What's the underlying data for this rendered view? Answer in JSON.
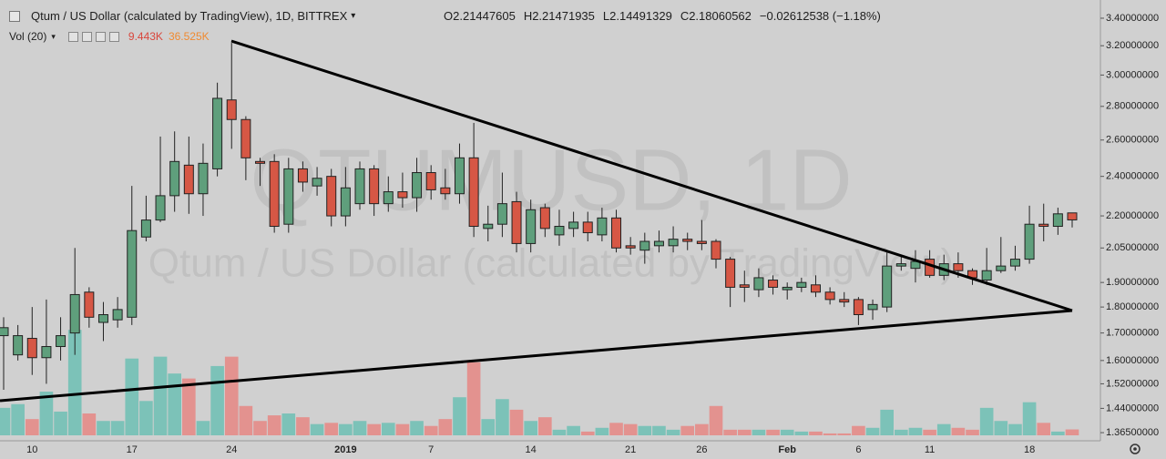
{
  "header": {
    "title": "Qtum / US Dollar (calculated by TradingView), 1D, BITTREX",
    "ohlc": [
      {
        "label": "O",
        "value": "2.21447605"
      },
      {
        "label": "H",
        "value": "2.21471935"
      },
      {
        "label": "L",
        "value": "2.14491329"
      },
      {
        "label": "C",
        "value": "2.18060562"
      }
    ],
    "change": "−0.02612538 (−1.18%)",
    "volume_indicator": "Vol (20)",
    "volume_value": "9.443K",
    "volume_ma": "36.525K"
  },
  "chart_data": {
    "type": "candlestick",
    "watermark": "QTUMUSD, 1D",
    "watermark_subtitle": "Qtum / US Dollar (calculated by TradingView)",
    "categories": [
      null,
      null,
      "10",
      null,
      null,
      null,
      null,
      null,
      null,
      "17",
      null,
      null,
      null,
      null,
      null,
      null,
      "24",
      null,
      null,
      null,
      null,
      null,
      null,
      null,
      "2019",
      null,
      null,
      null,
      null,
      null,
      "7",
      null,
      null,
      null,
      null,
      null,
      null,
      "14",
      null,
      null,
      null,
      null,
      null,
      null,
      "21",
      null,
      null,
      null,
      null,
      "26",
      null,
      null,
      null,
      null,
      null,
      "Feb",
      null,
      null,
      null,
      null,
      "6",
      null,
      null,
      null,
      null,
      "11",
      null,
      null,
      null,
      null,
      null,
      null,
      "18",
      null,
      null,
      null
    ],
    "open": [
      1.69,
      1.62,
      1.68,
      1.61,
      1.65,
      1.7,
      1.86,
      1.74,
      1.75,
      1.76,
      2.1,
      2.18,
      2.3,
      2.46,
      2.31,
      2.44,
      2.84,
      2.72,
      2.48,
      2.48,
      2.16,
      2.44,
      2.35,
      2.4,
      2.2,
      2.26,
      2.44,
      2.26,
      2.32,
      2.29,
      2.42,
      2.34,
      2.31,
      2.5,
      2.14,
      2.16,
      2.27,
      2.07,
      2.24,
      2.11,
      2.14,
      2.17,
      2.11,
      2.19,
      2.06,
      2.04,
      2.06,
      2.06,
      2.09,
      2.08,
      2.08,
      2.0,
      1.89,
      1.87,
      1.91,
      1.87,
      1.88,
      1.89,
      1.86,
      1.83,
      1.83,
      1.79,
      1.8,
      1.97,
      1.96,
      2.0,
      1.93,
      1.98,
      1.95,
      1.91,
      1.95,
      1.97,
      2.0,
      2.16,
      2.15,
      2.21447605
    ],
    "high": [
      1.76,
      1.73,
      1.8,
      1.83,
      1.76,
      2.05,
      1.88,
      1.82,
      1.84,
      2.35,
      2.3,
      2.62,
      2.65,
      2.62,
      2.58,
      2.95,
      3.22,
      2.74,
      2.5,
      2.52,
      2.5,
      2.48,
      2.45,
      2.44,
      2.45,
      2.48,
      2.46,
      2.4,
      2.42,
      2.5,
      2.46,
      2.44,
      2.58,
      2.7,
      2.25,
      2.42,
      2.32,
      2.28,
      2.26,
      2.23,
      2.22,
      2.22,
      2.24,
      2.23,
      2.1,
      2.12,
      2.13,
      2.15,
      2.12,
      2.18,
      2.09,
      2.01,
      1.95,
      1.96,
      1.93,
      1.9,
      1.92,
      1.93,
      1.88,
      1.86,
      1.84,
      1.83,
      2.03,
      2.02,
      2.04,
      2.04,
      2.02,
      2.03,
      1.96,
      2.05,
      2.1,
      2.06,
      2.25,
      2.26,
      2.24,
      2.21471935
    ],
    "low": [
      1.5,
      1.6,
      1.55,
      1.52,
      1.6,
      1.62,
      1.72,
      1.67,
      1.72,
      1.73,
      2.08,
      2.17,
      2.22,
      2.21,
      2.2,
      2.4,
      2.55,
      2.38,
      2.35,
      2.12,
      2.12,
      2.32,
      2.3,
      2.15,
      2.15,
      2.23,
      2.2,
      2.22,
      2.24,
      2.22,
      2.28,
      2.28,
      2.26,
      2.1,
      2.08,
      2.1,
      2.03,
      2.03,
      2.1,
      2.06,
      2.1,
      2.08,
      2.08,
      2.03,
      2.02,
      1.98,
      2.03,
      2.03,
      2.04,
      2.04,
      1.96,
      1.8,
      1.82,
      1.84,
      1.85,
      1.83,
      1.86,
      1.84,
      1.81,
      1.8,
      1.73,
      1.75,
      1.78,
      1.95,
      1.9,
      1.92,
      1.91,
      1.92,
      1.89,
      1.89,
      1.94,
      1.95,
      1.98,
      2.08,
      2.11,
      2.14491329
    ],
    "close": [
      1.72,
      1.69,
      1.61,
      1.65,
      1.69,
      1.85,
      1.76,
      1.77,
      1.79,
      2.13,
      2.18,
      2.3,
      2.48,
      2.31,
      2.47,
      2.85,
      2.72,
      2.5,
      2.47,
      2.15,
      2.44,
      2.37,
      2.39,
      2.2,
      2.34,
      2.44,
      2.26,
      2.32,
      2.29,
      2.42,
      2.33,
      2.31,
      2.5,
      2.15,
      2.16,
      2.26,
      2.07,
      2.23,
      2.14,
      2.15,
      2.17,
      2.12,
      2.19,
      2.05,
      2.05,
      2.08,
      2.08,
      2.09,
      2.08,
      2.07,
      2.0,
      1.88,
      1.88,
      1.92,
      1.88,
      1.88,
      1.9,
      1.86,
      1.83,
      1.82,
      1.77,
      1.81,
      1.97,
      1.98,
      1.99,
      1.93,
      1.98,
      1.95,
      1.92,
      1.95,
      1.97,
      2.0,
      2.16,
      2.15,
      2.21,
      2.18060562
    ],
    "volume": [
      44000,
      50000,
      26000,
      70000,
      38000,
      169000,
      35000,
      23000,
      23000,
      123000,
      55000,
      126000,
      99000,
      91000,
      23000,
      111000,
      126000,
      47000,
      23000,
      32000,
      35000,
      29000,
      18000,
      20000,
      18000,
      23000,
      18000,
      20000,
      18000,
      23000,
      15000,
      26000,
      61000,
      117000,
      26000,
      58000,
      41000,
      23000,
      29000,
      9000,
      15000,
      6000,
      12000,
      20000,
      18000,
      15000,
      15000,
      9000,
      15000,
      18000,
      47000,
      9000,
      9000,
      9000,
      9000,
      9000,
      6000,
      6000,
      3000,
      3000,
      15000,
      12000,
      41000,
      9000,
      12000,
      9000,
      18000,
      12000,
      9000,
      44000,
      23000,
      18000,
      53000,
      20000,
      6000,
      9443
    ],
    "up_color": "#5f9f7c",
    "down_color": "#d65745",
    "volume_up_color": "#7cc2b8",
    "volume_down_color": "#e3928f",
    "log_scale": true,
    "ylim": [
      1.357,
      3.539
    ],
    "yticks": [
      {
        "value": 3.4,
        "label": "3.40000000"
      },
      {
        "value": 3.2,
        "label": "3.20000000"
      },
      {
        "value": 3.0,
        "label": "3.00000000"
      },
      {
        "value": 2.8,
        "label": "2.80000000"
      },
      {
        "value": 2.6,
        "label": "2.60000000"
      },
      {
        "value": 2.4,
        "label": "2.40000000"
      },
      {
        "value": 2.2,
        "label": "2.20000000"
      },
      {
        "value": 2.05,
        "label": "2.05000000"
      },
      {
        "value": 1.9,
        "label": "1.90000000"
      },
      {
        "value": 1.8,
        "label": "1.80000000"
      },
      {
        "value": 1.7,
        "label": "1.70000000"
      },
      {
        "value": 1.6,
        "label": "1.60000000"
      },
      {
        "value": 1.52,
        "label": "1.52000000"
      },
      {
        "value": 1.44,
        "label": "1.44000000"
      },
      {
        "value": 1.365,
        "label": "1.36500000"
      }
    ],
    "volume_lim": [
      0,
      213000
    ],
    "grid": false
  }
}
